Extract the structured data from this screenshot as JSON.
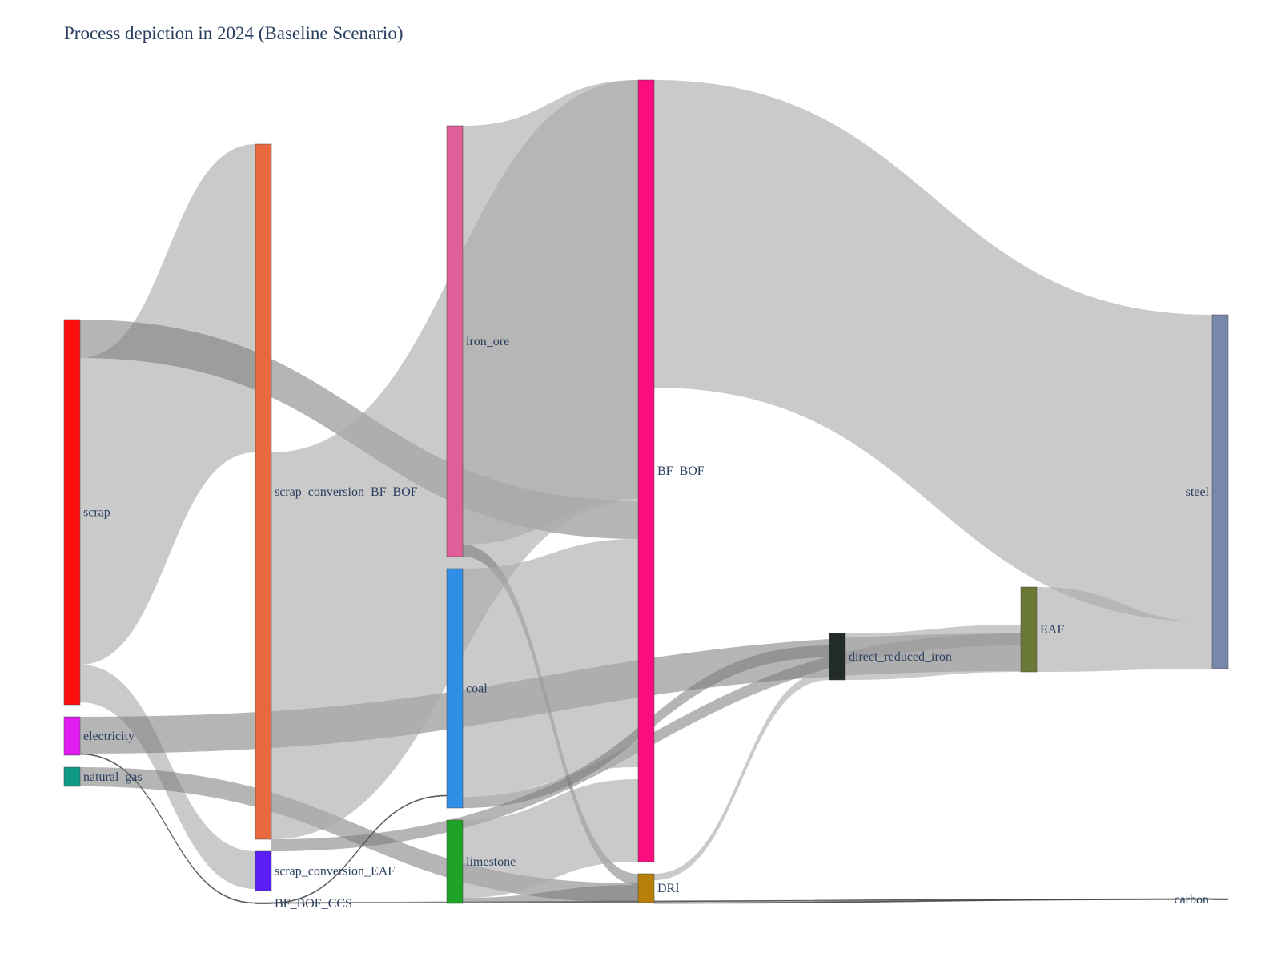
{
  "title": "Process depiction in 2024 (Baseline Scenario)",
  "chart_data": {
    "type": "sankey",
    "nodes": [
      {
        "id": "scrap",
        "label": "scrap",
        "color": "#ff0e0e"
      },
      {
        "id": "electricity",
        "label": "electricity",
        "color": "#e01cf2"
      },
      {
        "id": "natural_gas",
        "label": "natural_gas",
        "color": "#0f9a86"
      },
      {
        "id": "scrap_conversion_BF_BOF",
        "label": "scrap_conversion_BF_BOF",
        "color": "#e8693f"
      },
      {
        "id": "scrap_conversion_EAF",
        "label": "scrap_conversion_EAF",
        "color": "#5a1ef6"
      },
      {
        "id": "BF_BOF_CCS",
        "label": "BF_BOF_CCS",
        "color": "#2a3f5f"
      },
      {
        "id": "iron_ore",
        "label": "iron_ore",
        "color": "#e05f98"
      },
      {
        "id": "coal",
        "label": "coal",
        "color": "#2f8fe6"
      },
      {
        "id": "limestone",
        "label": "limestone",
        "color": "#1fa326"
      },
      {
        "id": "BF_BOF",
        "label": "BF_BOF",
        "color": "#fb0d80"
      },
      {
        "id": "DRI",
        "label": "DRI",
        "color": "#b8800a"
      },
      {
        "id": "direct_reduced_iron",
        "label": "direct_reduced_iron",
        "color": "#222a2a"
      },
      {
        "id": "EAF",
        "label": "EAF",
        "color": "#6a7a36"
      },
      {
        "id": "steel",
        "label": "steel",
        "color": "#7888aa"
      },
      {
        "id": "carbon",
        "label": "carbon",
        "color": "#2a3f5f"
      }
    ],
    "links": [
      {
        "source": "scrap",
        "target": "scrap_conversion_BF_BOF",
        "value": 24
      },
      {
        "source": "scrap",
        "target": "BF_BOF",
        "value": 3
      },
      {
        "source": "scrap",
        "target": "scrap_conversion_EAF",
        "value": 3
      },
      {
        "source": "electricity",
        "target": "EAF",
        "value": 3
      },
      {
        "source": "electricity",
        "target": "BF_BOF_CCS",
        "value": 0.05
      },
      {
        "source": "natural_gas",
        "target": "DRI",
        "value": 1.5
      },
      {
        "source": "scrap_conversion_BF_BOF",
        "target": "BF_BOF",
        "value": 54
      },
      {
        "source": "scrap_conversion_EAF",
        "target": "EAF",
        "value": 3
      },
      {
        "source": "BF_BOF_CCS",
        "target": "coal",
        "value": 0.05
      },
      {
        "source": "BF_BOF_CCS",
        "target": "carbon",
        "value": 0.05
      },
      {
        "source": "iron_ore",
        "target": "BF_BOF",
        "value": 33
      },
      {
        "source": "iron_ore",
        "target": "DRI",
        "value": 0.5
      },
      {
        "source": "coal",
        "target": "BF_BOF",
        "value": 18
      },
      {
        "source": "coal",
        "target": "direct_reduced_iron",
        "value": 1
      },
      {
        "source": "limestone",
        "target": "BF_BOF",
        "value": 5
      },
      {
        "source": "limestone",
        "target": "DRI",
        "value": 1.5
      },
      {
        "source": "BF_BOF",
        "target": "steel",
        "value": 24
      },
      {
        "source": "DRI",
        "target": "direct_reduced_iron",
        "value": 0.5
      },
      {
        "source": "direct_reduced_iron",
        "target": "EAF",
        "value": 3
      },
      {
        "source": "EAF",
        "target": "steel",
        "value": 6
      },
      {
        "source": "DRI",
        "target": "carbon",
        "value": 0.05
      }
    ]
  }
}
